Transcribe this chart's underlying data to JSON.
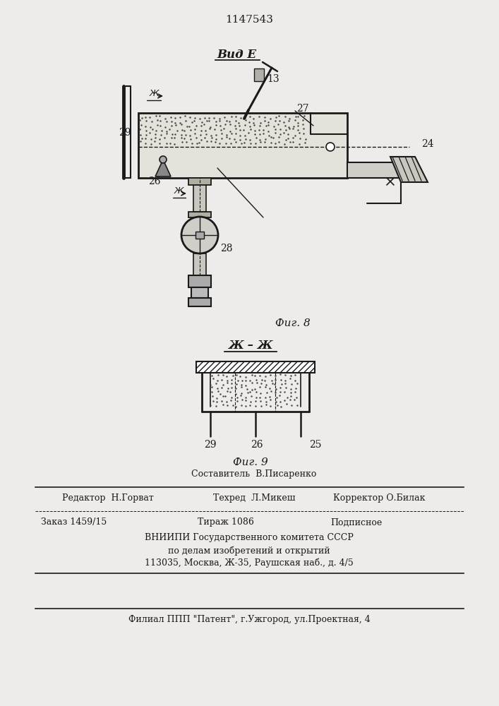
{
  "title": "1147543",
  "fig8_label": "Фиг. 8",
  "fig9_label": "Фиг. 9",
  "vid_label": "Вид Е",
  "section_label": "Ж – Ж",
  "bg_color": "#eeecea",
  "line_color": "#1a1a1a",
  "footer_line1": "Составитель  В.Писаренко",
  "footer_line2a": "Редактор  Н.Горват",
  "footer_line2b": "Техред  Л.Микеш",
  "footer_line2c": "Корректор О.Билак",
  "footer_line3a": "Заказ 1459/15",
  "footer_line3b": "Тираж 1086",
  "footer_line3c": "Подписное",
  "footer_line4": "ВНИИПИ Государственного комитета СССР",
  "footer_line5": "по делам изобретений и открытий",
  "footer_line6": "113035, Москва, Ж-35, Раушская наб., д. 4/5",
  "footer_line7": "Филиал ППП \"Патент\", г.Ужгород, ул.Проектная, 4"
}
